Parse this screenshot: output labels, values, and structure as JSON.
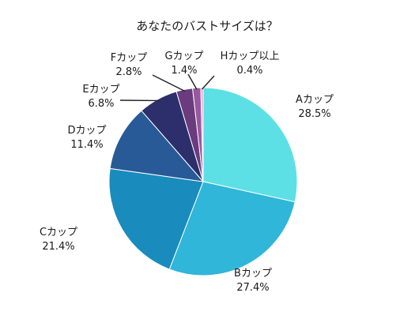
{
  "chart_data": {
    "type": "pie",
    "title": "あなたのバストサイズは？",
    "slices": [
      {
        "label": "Aカップ",
        "value": 28.5,
        "value_text": "28.5%",
        "color": "#5ce0e6"
      },
      {
        "label": "Bカップ",
        "value": 27.4,
        "value_text": "27.4%",
        "color": "#2fb6d8"
      },
      {
        "label": "Cカップ",
        "value": 21.4,
        "value_text": "21.4%",
        "color": "#1a8bbd"
      },
      {
        "label": "Dカップ",
        "value": 11.4,
        "value_text": "11.4%",
        "color": "#285a98"
      },
      {
        "label": "Eカップ",
        "value": 6.8,
        "value_text": "6.8%",
        "color": "#2c2f6c"
      },
      {
        "label": "Fカップ",
        "value": 2.8,
        "value_text": "2.8%",
        "color": "#6a3b7d"
      },
      {
        "label": "Gカップ",
        "value": 1.4,
        "value_text": "1.4%",
        "color": "#9a58a0"
      },
      {
        "label": "Hカップ以上",
        "value": 0.4,
        "value_text": "0.4%",
        "color": "#e7a9c4"
      }
    ]
  }
}
